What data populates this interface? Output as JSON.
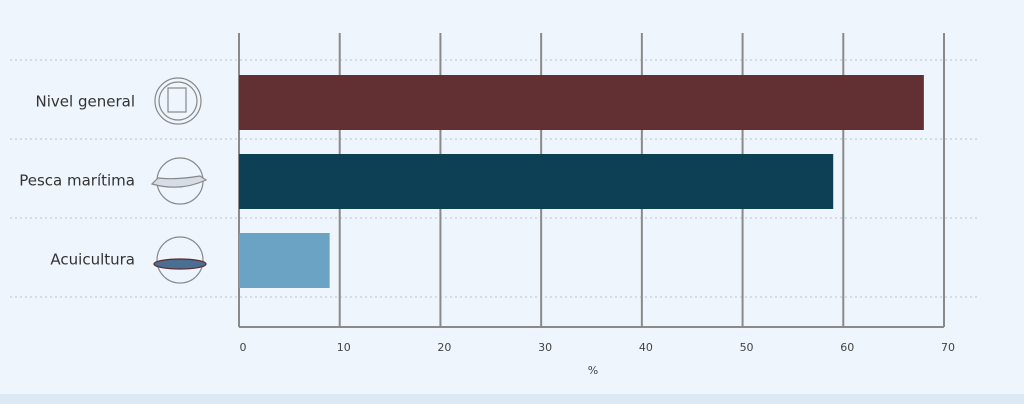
{
  "chart_data": {
    "type": "hbar",
    "categories": [
      "Nivel general",
      "Pesca marítima",
      "Acuicultura"
    ],
    "values": [
      68,
      59,
      9
    ],
    "colors": [
      "#622f33",
      "#0d3f55",
      "#6aa3c4"
    ],
    "xlim": [
      0,
      70
    ],
    "xticks": [
      0,
      10,
      20,
      30,
      40,
      50,
      60,
      70
    ],
    "xlabel": "%",
    "grid": true
  }
}
